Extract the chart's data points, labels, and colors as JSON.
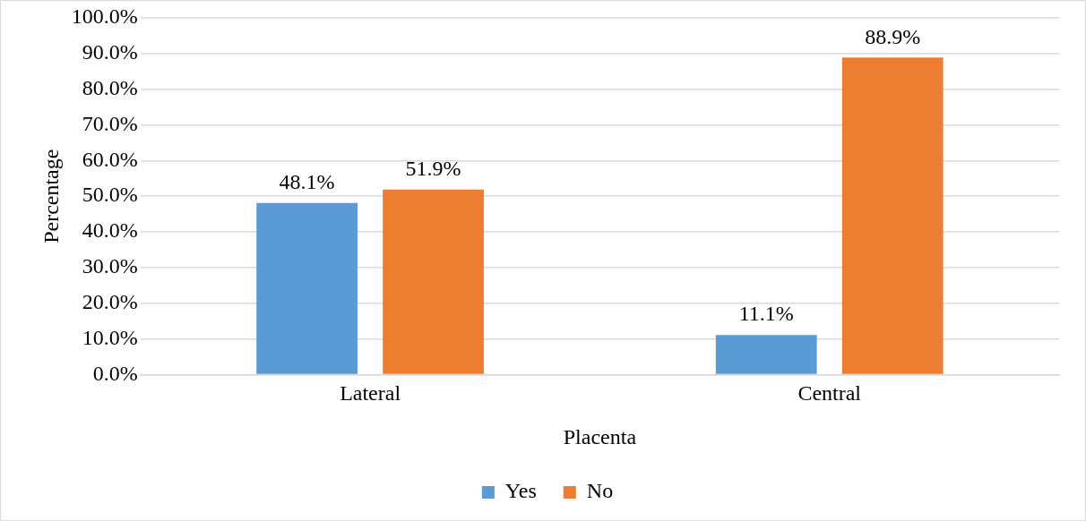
{
  "chart_data": {
    "type": "bar",
    "xlabel": "Placenta",
    "ylabel": "Percentage",
    "categories": [
      "Lateral",
      "Central"
    ],
    "series": [
      {
        "name": "Yes",
        "color": "#5b9bd5",
        "values": [
          48.1,
          11.1
        ],
        "value_labels": [
          "48.1%",
          "11.1%"
        ]
      },
      {
        "name": "No",
        "color": "#ed7d31",
        "values": [
          51.9,
          88.9
        ],
        "value_labels": [
          "51.9%",
          "88.9%"
        ]
      }
    ],
    "ylim": [
      0,
      100
    ],
    "yticks": [
      {
        "value": 0,
        "label": "0.0%"
      },
      {
        "value": 10,
        "label": "10.0%"
      },
      {
        "value": 20,
        "label": "20.0%"
      },
      {
        "value": 30,
        "label": "30.0%"
      },
      {
        "value": 40,
        "label": "40.0%"
      },
      {
        "value": 50,
        "label": "50.0%"
      },
      {
        "value": 60,
        "label": "60.0%"
      },
      {
        "value": 70,
        "label": "70.0%"
      },
      {
        "value": 80,
        "label": "80.0%"
      },
      {
        "value": 90,
        "label": "90.0%"
      },
      {
        "value": 100,
        "label": "100.0%"
      }
    ],
    "grid": "y",
    "legend": "bottom"
  }
}
